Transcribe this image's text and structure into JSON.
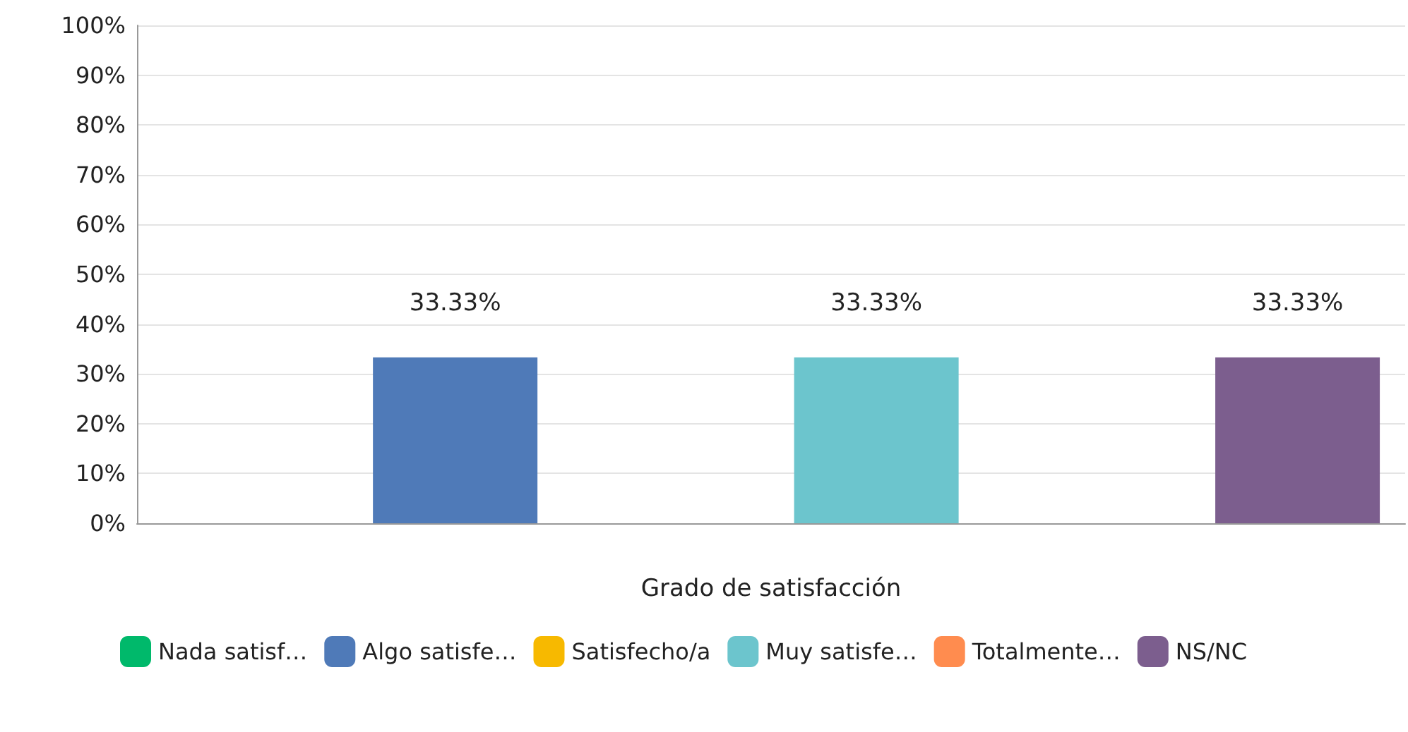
{
  "chart_data": {
    "type": "bar",
    "xlabel": "Grado de satisfacción",
    "categories": [
      null
    ],
    "series": [
      {
        "name": "Nada satisf…",
        "color": "#00b96b",
        "values": [
          null
        ],
        "value_labels": [
          null
        ]
      },
      {
        "name": "Algo satisfe…",
        "color": "#4f7ab8",
        "values": [
          33.33
        ],
        "value_labels": [
          "33.33%"
        ]
      },
      {
        "name": "Satisfecho/a",
        "color": "#f7b900",
        "values": [
          null
        ],
        "value_labels": [
          null
        ]
      },
      {
        "name": "Muy satisfe…",
        "color": "#6cc5cd",
        "values": [
          33.33
        ],
        "value_labels": [
          "33.33%"
        ]
      },
      {
        "name": "Totalmente…",
        "color": "#ff8c4f",
        "values": [
          null
        ],
        "value_labels": [
          null
        ]
      },
      {
        "name": "NS/NC",
        "color": "#7c5e8e",
        "values": [
          33.33
        ],
        "value_labels": [
          "33.33%"
        ]
      }
    ],
    "ylim": [
      0,
      100
    ],
    "yticks": [
      {
        "value": 0,
        "label": "0%"
      },
      {
        "value": 10,
        "label": "10%"
      },
      {
        "value": 20,
        "label": "20%"
      },
      {
        "value": 30,
        "label": "30%"
      },
      {
        "value": 40,
        "label": "40%"
      },
      {
        "value": 50,
        "label": "50%"
      },
      {
        "value": 60,
        "label": "60%"
      },
      {
        "value": 70,
        "label": "70%"
      },
      {
        "value": 80,
        "label": "80%"
      },
      {
        "value": 90,
        "label": "90%"
      },
      {
        "value": 100,
        "label": "100%"
      }
    ],
    "grid": "y",
    "legend": "bottom"
  }
}
